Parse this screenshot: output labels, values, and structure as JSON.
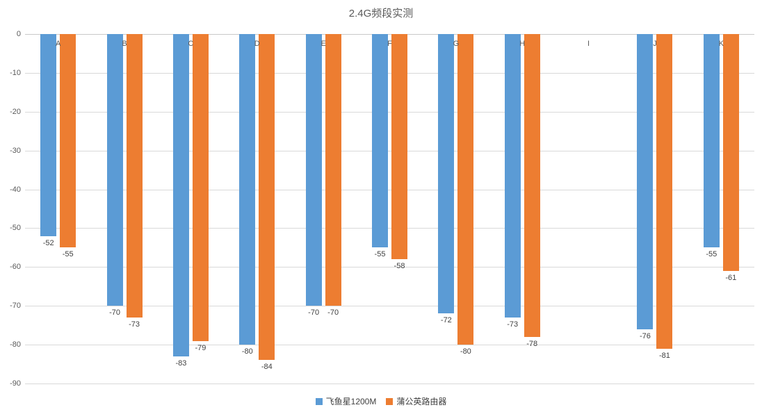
{
  "title": "2.4G频段实测",
  "chart_data": {
    "type": "bar",
    "title": "2.4G频段实测",
    "orientation": "vertical-negative",
    "categories": [
      "A",
      "B",
      "C",
      "D",
      "E",
      "F",
      "G",
      "H",
      "I",
      "J",
      "K"
    ],
    "series": [
      {
        "name": "飞鱼星1200M",
        "color": "#5B9BD5",
        "values": [
          -52,
          -70,
          -83,
          -80,
          -70,
          -55,
          -72,
          -73,
          null,
          -76,
          -55
        ]
      },
      {
        "name": "蒲公英路由器",
        "color": "#ED7D31",
        "values": [
          -55,
          -73,
          -79,
          -84,
          -70,
          -58,
          -80,
          -78,
          null,
          -81,
          -61
        ]
      }
    ],
    "xlabel": "",
    "ylabel": "",
    "ylim": [
      -90,
      0
    ],
    "yticks": [
      0,
      -10,
      -20,
      -30,
      -40,
      -50,
      -60,
      -70,
      -80,
      -90
    ],
    "grid": true,
    "data_labels": true,
    "legend_position": "bottom"
  },
  "colors": {
    "axis_text": "#595959",
    "grid": "#D9D9D9",
    "zero_line": "#C9C9C9",
    "data_label_text": "#404040",
    "background": "#FFFFFF"
  }
}
